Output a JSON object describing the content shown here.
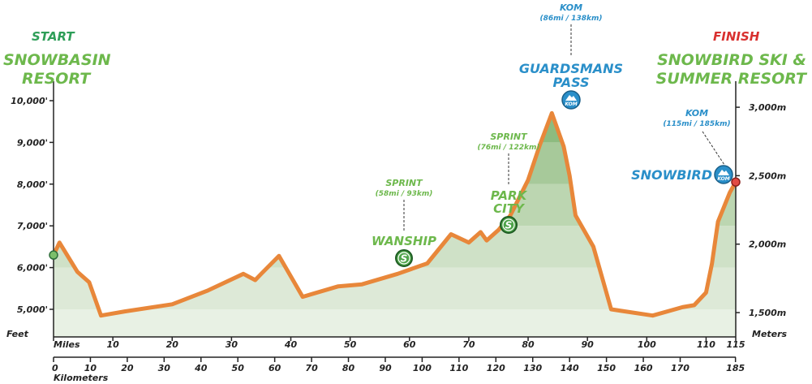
{
  "chart_data": {
    "type": "area",
    "title": "",
    "y_left_label": "Feet",
    "y_right_label": "Meters",
    "x_top_label": "Miles",
    "x_bottom_label": "Kilometers",
    "y_left_ticks": [
      "5,000'",
      "6,000'",
      "7,000'",
      "8,000'",
      "9,000'",
      "10,000'"
    ],
    "y_left_values": [
      5000,
      6000,
      7000,
      8000,
      9000,
      10000
    ],
    "y_right_ticks": [
      "1,500m",
      "2,000m",
      "2,500m",
      "3,000m"
    ],
    "y_right_values": [
      1500,
      2000,
      2500,
      3000
    ],
    "x_miles_ticks": [
      "0",
      "10",
      "20",
      "30",
      "40",
      "50",
      "60",
      "70",
      "80",
      "90",
      "100",
      "110",
      "115"
    ],
    "x_miles_values": [
      0,
      10,
      20,
      30,
      40,
      50,
      60,
      70,
      80,
      90,
      100,
      110,
      115
    ],
    "x_km_ticks": [
      "0",
      "10",
      "20",
      "30",
      "40",
      "50",
      "60",
      "70",
      "80",
      "90",
      "100",
      "110",
      "120",
      "130",
      "140",
      "150",
      "160",
      "170",
      "185"
    ],
    "x_km_values": [
      0,
      10,
      20,
      30,
      40,
      50,
      60,
      70,
      80,
      90,
      100,
      110,
      120,
      130,
      140,
      150,
      160,
      170,
      185
    ],
    "colors": {
      "line": "#e8873a",
      "fill_band": "#dcebd8",
      "green_text": "#2e9e58",
      "green_light": "#6db84c",
      "blue_text": "#2a8fc9",
      "red_text": "#d8302f",
      "axis": "#222222"
    },
    "profile": {
      "x_miles": [
        0,
        1,
        4,
        6,
        8,
        12,
        20,
        26,
        32,
        34,
        35,
        38,
        42,
        48,
        52,
        58,
        62,
        63,
        67,
        70,
        72,
        73,
        75,
        77,
        80,
        82,
        84,
        86,
        87,
        88,
        91,
        94,
        101,
        106,
        108,
        110,
        111,
        112,
        114,
        115
      ],
      "elev_ft": [
        6300,
        6600,
        5900,
        5650,
        4850,
        4950,
        5120,
        5450,
        5850,
        5700,
        5850,
        6280,
        5300,
        5550,
        5600,
        5850,
        6050,
        6100,
        6800,
        6600,
        6850,
        6650,
        6900,
        7250,
        8100,
        8950,
        9700,
        8900,
        8200,
        7250,
        6500,
        5000,
        4850,
        5050,
        5100,
        5400,
        6100,
        7100,
        7800,
        8050
      ]
    },
    "labels": {
      "start": "START",
      "start_name_1": "SNOWBASIN",
      "start_name_2": "RESORT",
      "finish": "FINISH",
      "finish_name_1": "SNOWBIRD SKI &",
      "finish_name_2": "SUMMER RESORT",
      "kom1_title": "KOM",
      "kom1_sub": "(86mi / 138km)",
      "kom1_name_1": "GUARDSMANS",
      "kom1_name_2": "PASS",
      "kom2_title": "KOM",
      "kom2_sub": "(115mi / 185km)",
      "kom2_name": "SNOWBIRD",
      "sprint1_title": "SPRINT",
      "sprint1_sub": "(58mi / 93km)",
      "sprint1_name": "WANSHIP",
      "sprint2_title": "SPRINT",
      "sprint2_sub": "(76mi / 122km)",
      "sprint2_name_1": "PARK",
      "sprint2_name_2": "CITY",
      "kom_badge": "KOM",
      "sprint_badge": "S"
    }
  }
}
